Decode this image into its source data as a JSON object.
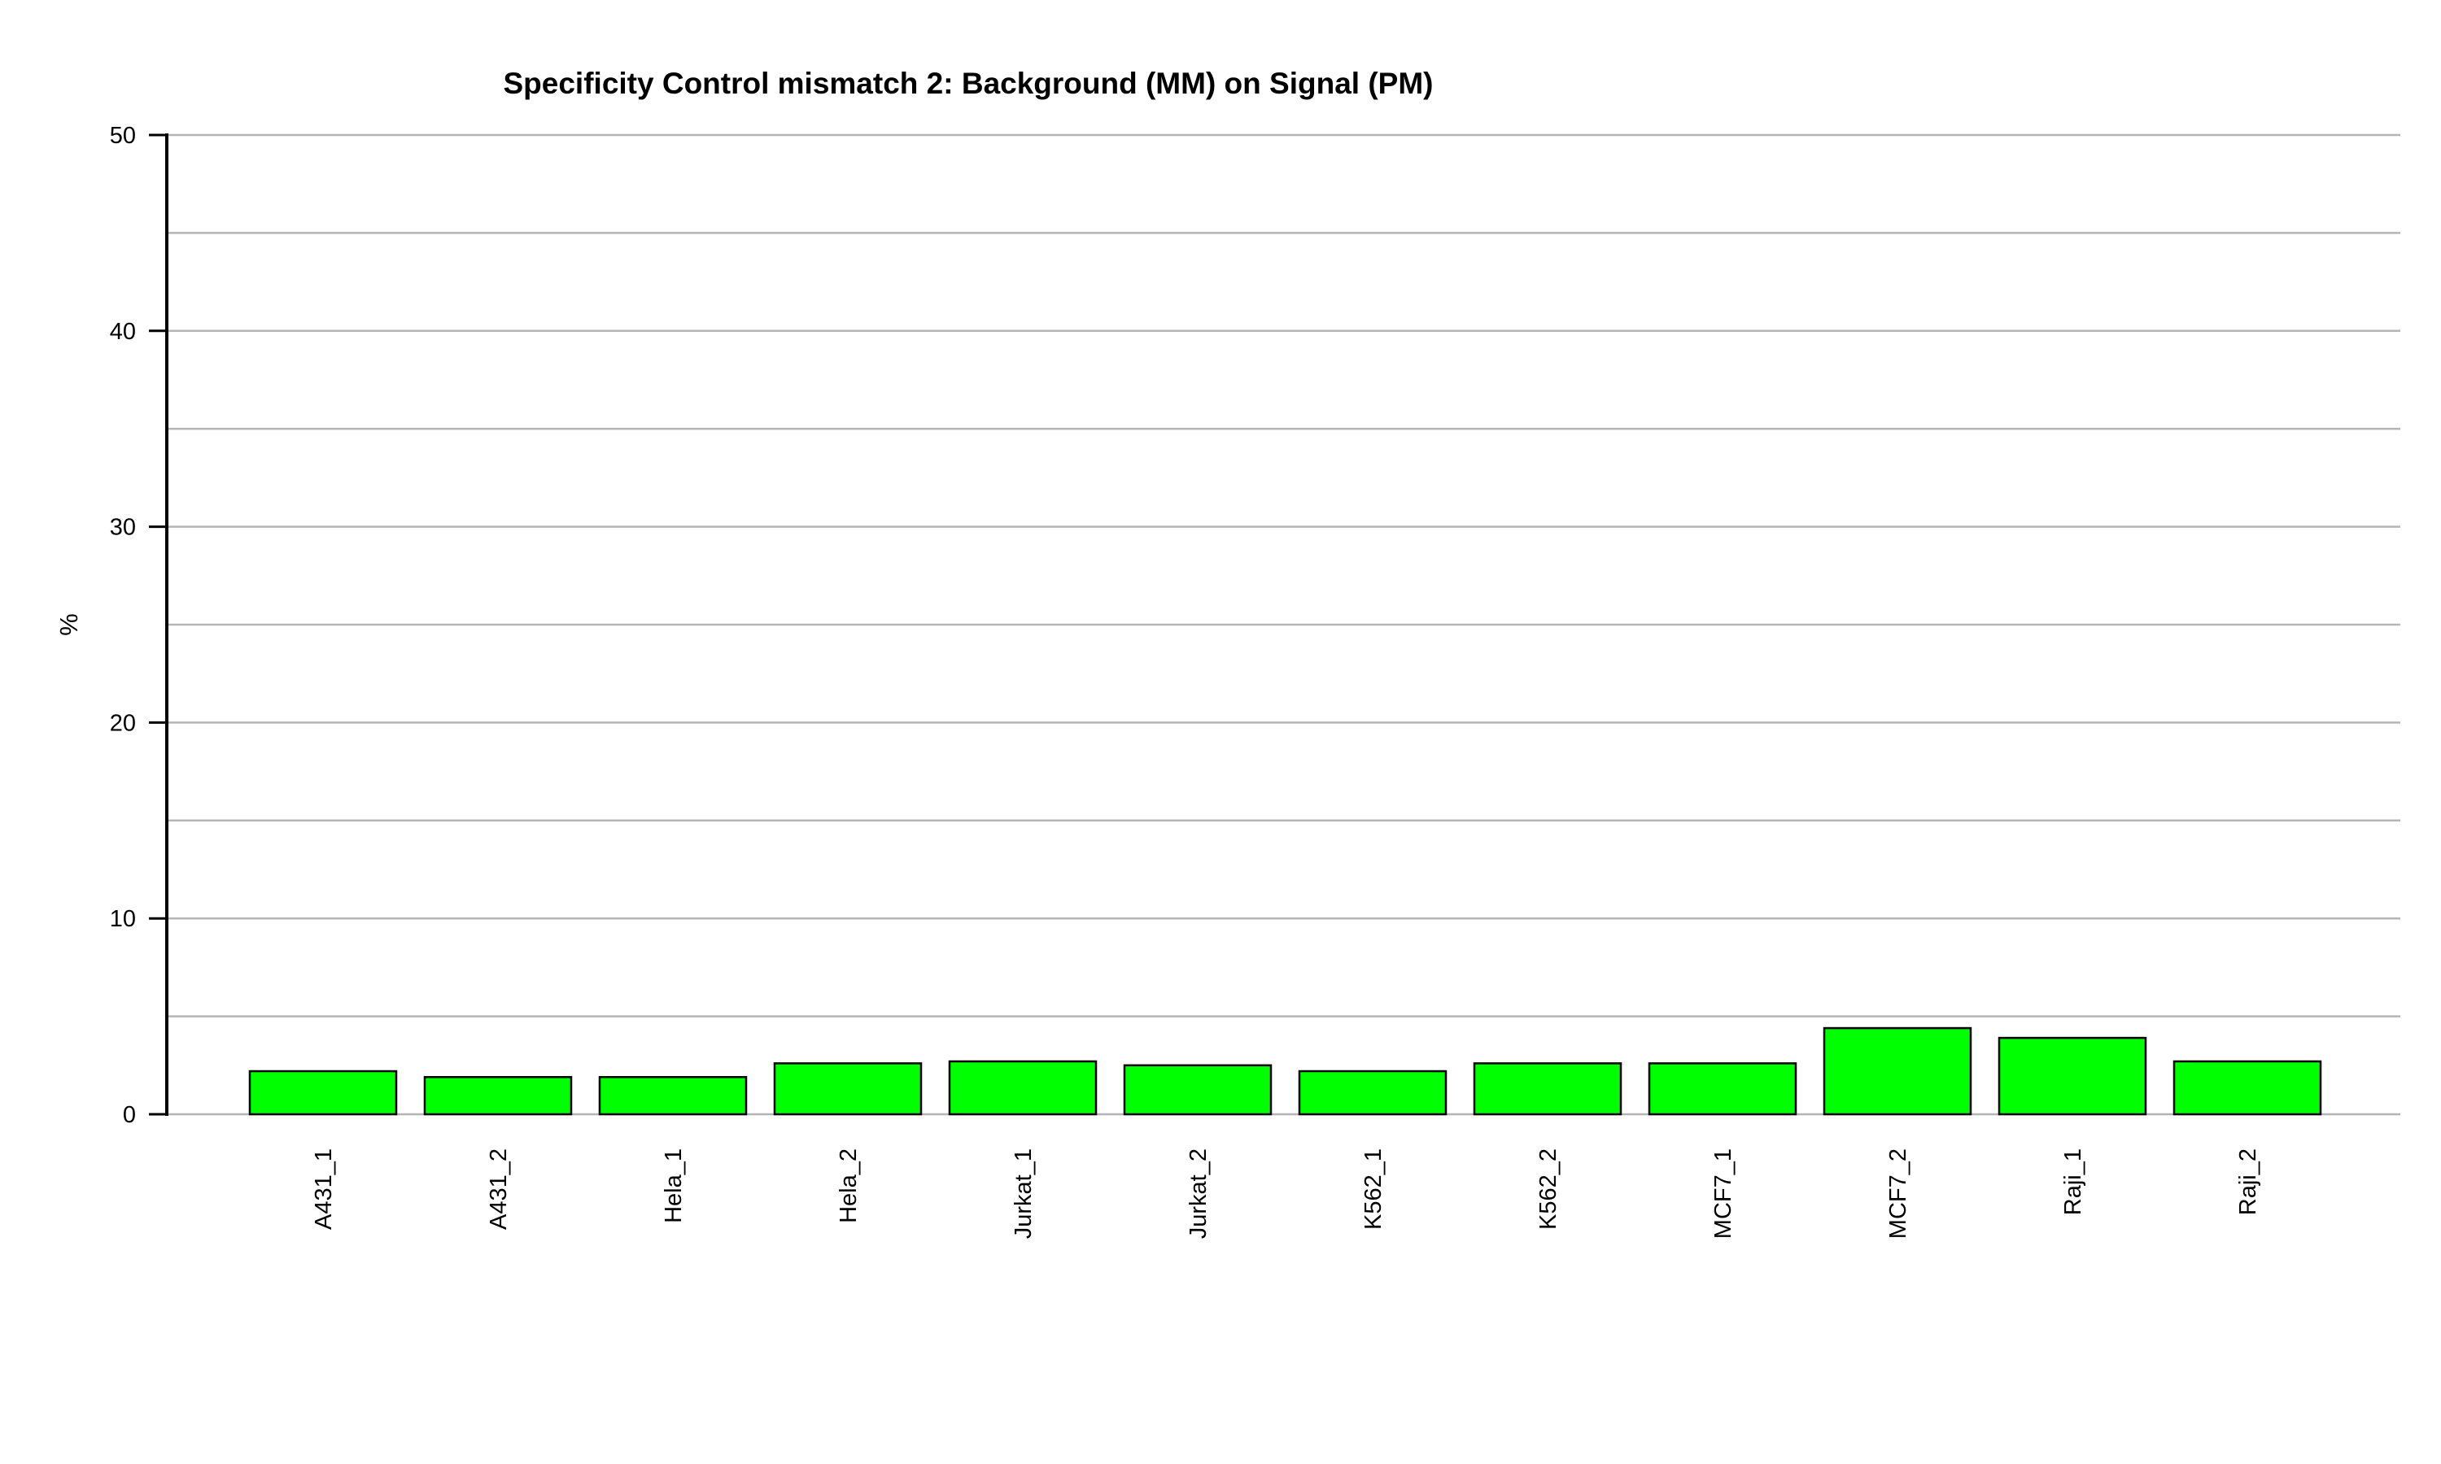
{
  "chart_data": {
    "type": "bar",
    "title": "Specificity Control mismatch 2: Background (MM) on Signal (PM)",
    "xlabel": "",
    "ylabel": "%",
    "categories": [
      "A431_1",
      "A431_2",
      "Hela_1",
      "Hela_2",
      "Jurkat_1",
      "Jurkat_2",
      "K562_1",
      "K562_2",
      "MCF7_1",
      "MCF7_2",
      "Raji_1",
      "Raji_2"
    ],
    "values": [
      2.2,
      1.9,
      1.9,
      2.6,
      2.7,
      2.5,
      2.2,
      2.6,
      2.6,
      4.4,
      3.9,
      2.7
    ],
    "ylim": [
      0,
      50
    ],
    "yticks": [
      0,
      10,
      20,
      30,
      40,
      50
    ],
    "grid_step": 5,
    "grid": true,
    "legend": "none",
    "bar_color": "#00ff00",
    "edge_color": "#000000",
    "grid_color": "#b4b4b4"
  }
}
